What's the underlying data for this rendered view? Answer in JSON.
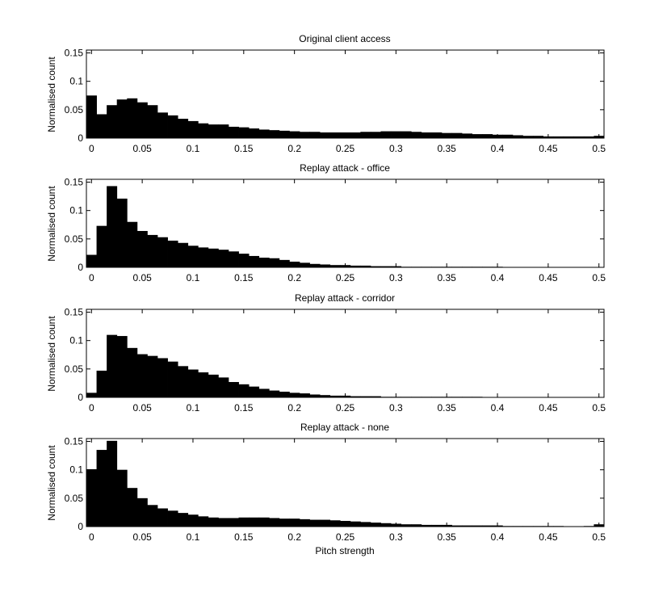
{
  "figure": {
    "background": "#ffffff",
    "bar_color": "#000000"
  },
  "chart_data": [
    {
      "type": "bar",
      "title": "Original client access",
      "xlabel": "",
      "ylabel": "Normalised count",
      "xlim": [
        -0.005,
        0.505
      ],
      "ylim": [
        0,
        0.155
      ],
      "xticks": [
        "0",
        "0.05",
        "0.1",
        "0.15",
        "0.2",
        "0.25",
        "0.3",
        "0.35",
        "0.4",
        "0.45",
        "0.5"
      ],
      "yticks": [
        "0",
        "0.05",
        "0.1",
        "0.15"
      ],
      "bin_start": -0.005,
      "bin_width": 0.01,
      "values": [
        0.075,
        0.042,
        0.058,
        0.068,
        0.07,
        0.063,
        0.058,
        0.045,
        0.04,
        0.034,
        0.03,
        0.026,
        0.024,
        0.024,
        0.02,
        0.019,
        0.017,
        0.015,
        0.014,
        0.013,
        0.012,
        0.011,
        0.011,
        0.01,
        0.01,
        0.01,
        0.01,
        0.011,
        0.011,
        0.012,
        0.012,
        0.012,
        0.011,
        0.01,
        0.01,
        0.009,
        0.009,
        0.008,
        0.007,
        0.007,
        0.006,
        0.006,
        0.005,
        0.004,
        0.004,
        0.003,
        0.003,
        0.003,
        0.003,
        0.003,
        0.004
      ]
    },
    {
      "type": "bar",
      "title": "Replay attack - office",
      "xlabel": "",
      "ylabel": "Normalised count",
      "xlim": [
        -0.005,
        0.505
      ],
      "ylim": [
        0,
        0.155
      ],
      "xticks": [
        "0",
        "0.05",
        "0.1",
        "0.15",
        "0.2",
        "0.25",
        "0.3",
        "0.35",
        "0.4",
        "0.45",
        "0.5"
      ],
      "yticks": [
        "0",
        "0.05",
        "0.1",
        "0.15"
      ],
      "bin_start": -0.005,
      "bin_width": 0.01,
      "values": [
        0.022,
        0.073,
        0.143,
        0.121,
        0.08,
        0.064,
        0.057,
        0.053,
        0.047,
        0.043,
        0.038,
        0.035,
        0.033,
        0.031,
        0.028,
        0.024,
        0.02,
        0.017,
        0.016,
        0.013,
        0.01,
        0.008,
        0.006,
        0.005,
        0.004,
        0.004,
        0.003,
        0.003,
        0.002,
        0.002,
        0.002,
        0.001,
        0.001,
        0.001,
        0.001,
        0.001,
        0.001,
        0.001,
        0.001,
        0.001,
        0.001,
        0.0,
        0.0,
        0.0,
        0.0,
        0.0,
        0.0,
        0.0,
        0.0,
        0.0,
        0.0
      ]
    },
    {
      "type": "bar",
      "title": "Replay attack - corridor",
      "xlabel": "",
      "ylabel": "Normalised count",
      "xlim": [
        -0.005,
        0.505
      ],
      "ylim": [
        0,
        0.155
      ],
      "xticks": [
        "0",
        "0.05",
        "0.1",
        "0.15",
        "0.2",
        "0.25",
        "0.3",
        "0.35",
        "0.4",
        "0.45",
        "0.5"
      ],
      "yticks": [
        "0",
        "0.05",
        "0.1",
        "0.15"
      ],
      "bin_start": -0.005,
      "bin_width": 0.01,
      "values": [
        0.008,
        0.047,
        0.11,
        0.108,
        0.087,
        0.076,
        0.073,
        0.069,
        0.063,
        0.055,
        0.049,
        0.044,
        0.04,
        0.035,
        0.027,
        0.023,
        0.019,
        0.015,
        0.012,
        0.01,
        0.008,
        0.007,
        0.005,
        0.004,
        0.003,
        0.003,
        0.002,
        0.002,
        0.002,
        0.001,
        0.001,
        0.001,
        0.001,
        0.001,
        0.001,
        0.001,
        0.001,
        0.001,
        0.001,
        0.0,
        0.0,
        0.0,
        0.0,
        0.0,
        0.0,
        0.0,
        0.0,
        0.0,
        0.0,
        0.0,
        0.0
      ]
    },
    {
      "type": "bar",
      "title": "Replay attack - none",
      "xlabel": "Pitch strength",
      "ylabel": "Normalised count",
      "xlim": [
        -0.005,
        0.505
      ],
      "ylim": [
        0,
        0.155
      ],
      "xticks": [
        "0",
        "0.05",
        "0.1",
        "0.15",
        "0.2",
        "0.25",
        "0.3",
        "0.35",
        "0.4",
        "0.45",
        "0.5"
      ],
      "yticks": [
        "0",
        "0.05",
        "0.1",
        "0.15"
      ],
      "bin_start": -0.005,
      "bin_width": 0.01,
      "values": [
        0.101,
        0.135,
        0.151,
        0.1,
        0.068,
        0.05,
        0.038,
        0.032,
        0.028,
        0.024,
        0.021,
        0.018,
        0.016,
        0.015,
        0.015,
        0.016,
        0.016,
        0.016,
        0.015,
        0.014,
        0.014,
        0.013,
        0.012,
        0.012,
        0.011,
        0.01,
        0.009,
        0.008,
        0.007,
        0.006,
        0.005,
        0.004,
        0.004,
        0.003,
        0.003,
        0.003,
        0.002,
        0.002,
        0.002,
        0.002,
        0.002,
        0.001,
        0.001,
        0.001,
        0.001,
        0.001,
        0.001,
        0.0,
        0.0,
        0.001,
        0.004
      ]
    }
  ]
}
